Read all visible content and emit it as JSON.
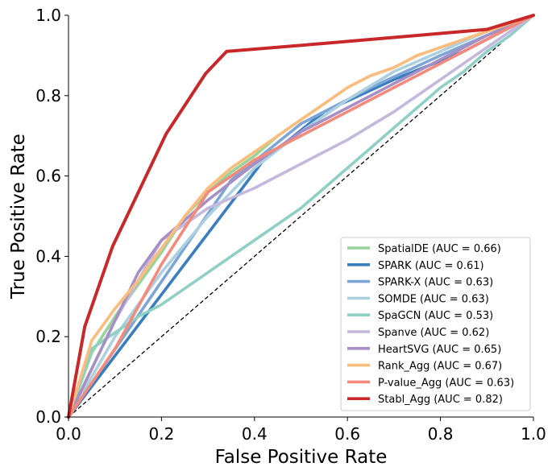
{
  "chart_data": {
    "type": "line",
    "title": "",
    "xlabel": "False Positive Rate",
    "ylabel": "True Positive Rate",
    "xlim": [
      0.0,
      1.0
    ],
    "ylim": [
      0.0,
      1.0
    ],
    "xticks": [
      "0.0",
      "0.2",
      "0.4",
      "0.6",
      "0.8",
      "1.0"
    ],
    "yticks": [
      "0.0",
      "0.2",
      "0.4",
      "0.6",
      "0.8",
      "1.0"
    ],
    "grid": false,
    "legend_position": "lower-right",
    "reference_line": {
      "x": [
        0,
        1
      ],
      "y": [
        0,
        1
      ],
      "style": "dashed",
      "color": "#000000"
    },
    "series": [
      {
        "name": "SpatialDE (AUC = 0.66)",
        "color": "#98d49a",
        "x": [
          0,
          0.05,
          0.1,
          0.15,
          0.2,
          0.25,
          0.3,
          0.35,
          0.4,
          0.45,
          0.5,
          0.55,
          0.6,
          0.65,
          0.7,
          0.75,
          0.8,
          0.85,
          0.9,
          0.95,
          1.0
        ],
        "y": [
          0,
          0.16,
          0.25,
          0.33,
          0.41,
          0.5,
          0.56,
          0.61,
          0.65,
          0.7,
          0.74,
          0.78,
          0.82,
          0.85,
          0.87,
          0.9,
          0.92,
          0.94,
          0.96,
          0.98,
          1.0
        ]
      },
      {
        "name": "SPARK (AUC = 0.61)",
        "color": "#3a7ebf",
        "x": [
          0,
          0.42,
          0.55,
          0.7,
          0.85,
          1.0
        ],
        "y": [
          0,
          0.64,
          0.76,
          0.84,
          0.91,
          1.0
        ]
      },
      {
        "name": "SPARK-X (AUC = 0.63)",
        "color": "#7ba6d6",
        "x": [
          0,
          0.35,
          0.5,
          0.65,
          0.8,
          1.0
        ],
        "y": [
          0,
          0.59,
          0.73,
          0.82,
          0.9,
          1.0
        ]
      },
      {
        "name": "SOMDE (AUC = 0.63)",
        "color": "#acd0e0",
        "x": [
          0,
          0.1,
          0.2,
          0.3,
          0.4,
          0.5,
          0.6,
          0.7,
          0.8,
          0.9,
          1.0
        ],
        "y": [
          0,
          0.2,
          0.36,
          0.5,
          0.62,
          0.71,
          0.79,
          0.86,
          0.91,
          0.96,
          1.0
        ]
      },
      {
        "name": "SpaGCN (AUC = 0.53)",
        "color": "#8fcfc5",
        "x": [
          0,
          0.05,
          0.1,
          0.15,
          0.2,
          0.25,
          0.3,
          0.35,
          0.4,
          0.45,
          0.5,
          0.55,
          0.6,
          0.65,
          0.7,
          0.75,
          0.8,
          0.85,
          0.9,
          0.95,
          1.0
        ],
        "y": [
          0,
          0.17,
          0.21,
          0.25,
          0.28,
          0.32,
          0.36,
          0.4,
          0.44,
          0.48,
          0.52,
          0.57,
          0.62,
          0.67,
          0.72,
          0.77,
          0.82,
          0.86,
          0.91,
          0.95,
          1.0
        ]
      },
      {
        "name": "Spanve (AUC = 0.62)",
        "color": "#c4b8dc",
        "x": [
          0,
          0.1,
          0.2,
          0.3,
          0.4,
          0.5,
          0.6,
          0.7,
          0.8,
          0.9,
          1.0
        ],
        "y": [
          0,
          0.24,
          0.44,
          0.52,
          0.57,
          0.63,
          0.69,
          0.76,
          0.84,
          0.92,
          1.0
        ]
      },
      {
        "name": "HeartSVG (AUC = 0.65)",
        "color": "#a68fc4",
        "x": [
          0,
          0.1,
          0.15,
          0.2,
          0.3,
          0.4,
          0.5,
          0.6,
          0.7,
          0.8,
          0.9,
          1.0
        ],
        "y": [
          0,
          0.24,
          0.36,
          0.44,
          0.54,
          0.63,
          0.71,
          0.77,
          0.83,
          0.89,
          0.95,
          1.0
        ]
      },
      {
        "name": "Rank_Agg (AUC = 0.67)",
        "color": "#fbbd7e",
        "x": [
          0,
          0.05,
          0.1,
          0.15,
          0.2,
          0.25,
          0.3,
          0.35,
          0.4,
          0.45,
          0.5,
          0.55,
          0.6,
          0.65,
          0.7,
          0.75,
          0.8,
          0.85,
          0.9,
          0.95,
          1.0
        ],
        "y": [
          0,
          0.19,
          0.27,
          0.34,
          0.42,
          0.5,
          0.57,
          0.62,
          0.66,
          0.7,
          0.74,
          0.78,
          0.82,
          0.85,
          0.87,
          0.9,
          0.92,
          0.94,
          0.96,
          0.98,
          1.0
        ]
      },
      {
        "name": "P-value_Agg (AUC = 0.63)",
        "color": "#f48a7c",
        "x": [
          0,
          0.1,
          0.2,
          0.3,
          0.4,
          0.5,
          0.6,
          0.7,
          0.8,
          0.9,
          1.0
        ],
        "y": [
          0,
          0.17,
          0.38,
          0.56,
          0.64,
          0.7,
          0.76,
          0.82,
          0.88,
          0.94,
          1.0
        ]
      },
      {
        "name": "Stabl_Agg (AUC = 0.82)",
        "color": "#c8282a",
        "x": [
          0,
          0.035,
          0.095,
          0.21,
          0.295,
          0.34,
          0.55,
          0.75,
          0.9,
          1.0
        ],
        "y": [
          0,
          0.225,
          0.425,
          0.705,
          0.855,
          0.91,
          0.93,
          0.95,
          0.965,
          1.0
        ]
      }
    ]
  }
}
